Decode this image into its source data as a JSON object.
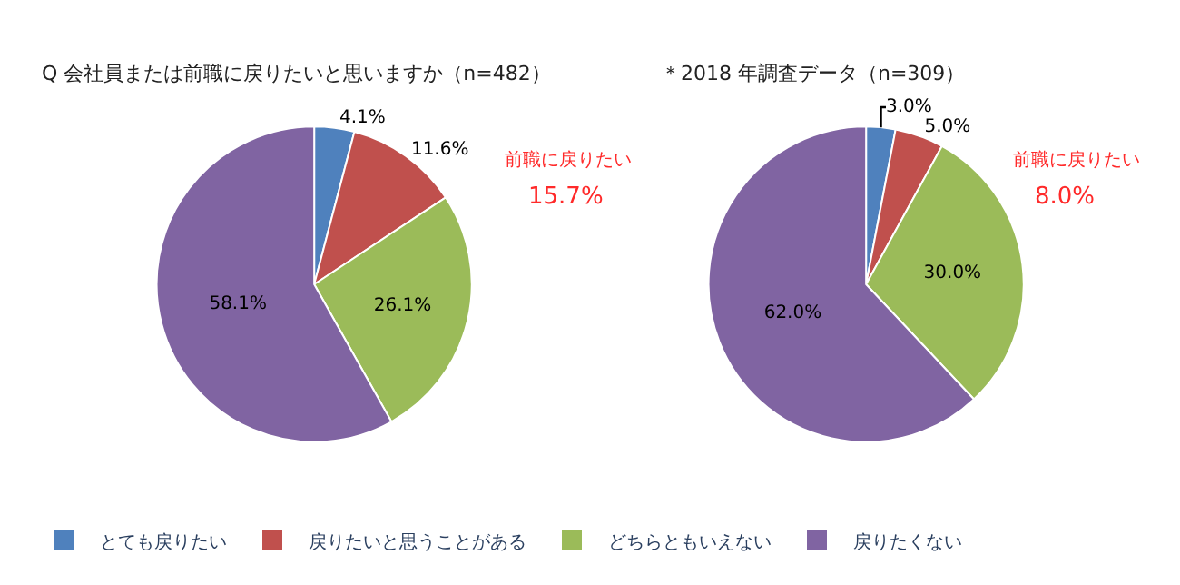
{
  "chart_data": [
    {
      "type": "pie",
      "title": "Q 会社員または前職に戻りたいと思いますか（n=482）",
      "categories": [
        "とても戻りたい",
        "戻りたいと思うことがある",
        "どちらともいえない",
        "戻りたくない"
      ],
      "values": [
        4.1,
        11.6,
        26.1,
        58.1
      ],
      "colors": [
        "#4f81bd",
        "#c0504d",
        "#9bbb59",
        "#8064a2"
      ],
      "value_labels": [
        "4.1%",
        "11.6%",
        "26.1%",
        "58.1%"
      ],
      "annotations": [
        "前職に戻りたい",
        "15.7%"
      ],
      "legend": "bottom"
    },
    {
      "type": "pie",
      "title": "＊2018 年調査データ（n=309）",
      "categories": [
        null,
        null,
        null,
        null
      ],
      "values": [
        3.0,
        5.0,
        30.0,
        62.0
      ],
      "colors": [
        "#4f81bd",
        "#c0504d",
        "#9bbb59",
        "#8064a2"
      ],
      "value_labels": [
        "3.0%",
        "5.0%",
        "30.0%",
        "62.0%"
      ],
      "annotations": [
        "前職に戻りたい",
        "8.0%"
      ]
    }
  ]
}
